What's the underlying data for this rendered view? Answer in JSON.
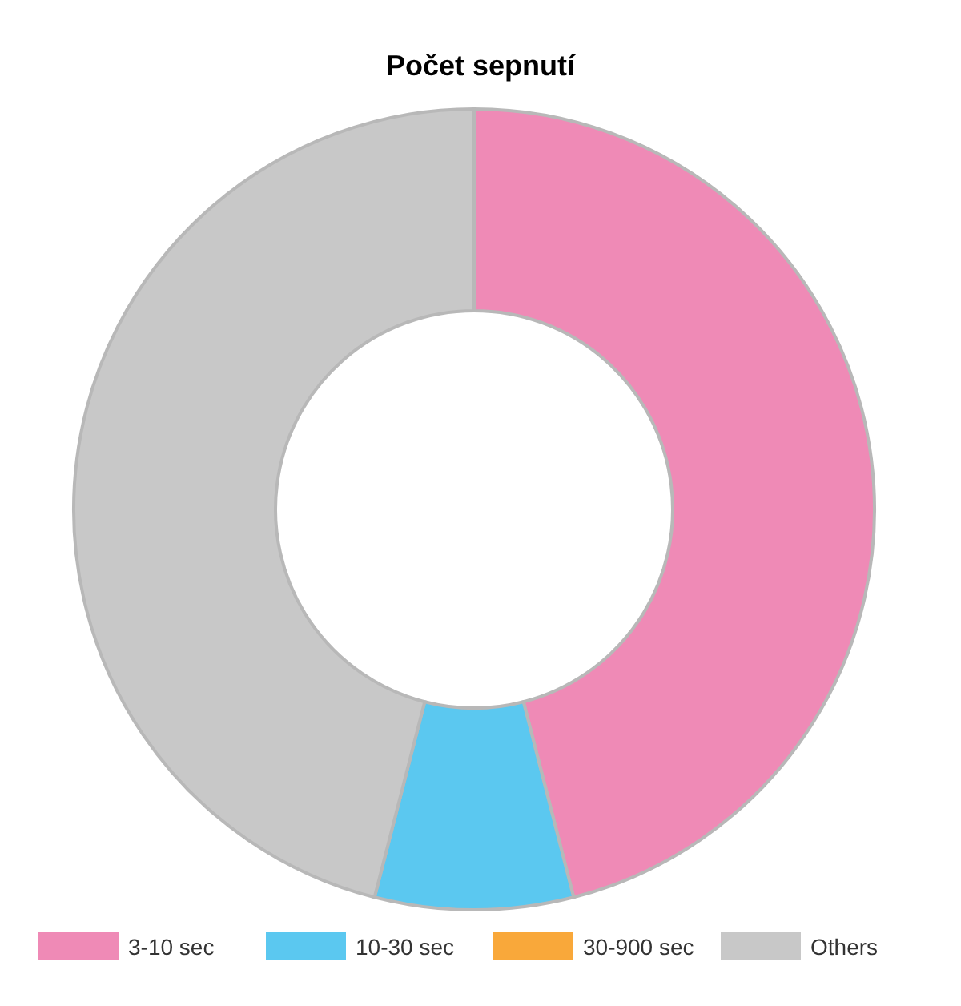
{
  "chart_data": {
    "type": "donut",
    "title": "Počet sepnutí",
    "categories": [
      "3-10 sec",
      "10-30 sec",
      "30-900 sec",
      "Others"
    ],
    "values": [
      46,
      8,
      0,
      46
    ],
    "colors": [
      "#ef8ab6",
      "#5bc8f0",
      "#f9a83a",
      "#c8c8c8"
    ],
    "legend": "bottom"
  }
}
